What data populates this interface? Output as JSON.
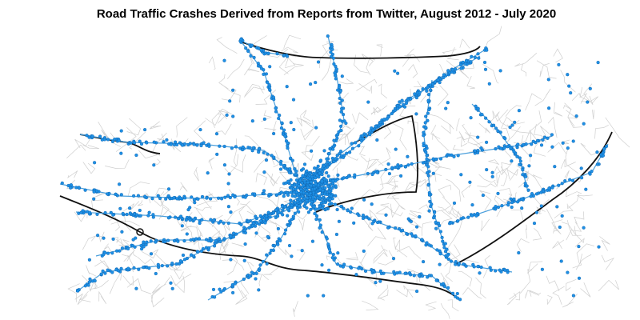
{
  "title": "Road Traffic Crashes Derived from Reports from Twitter, August 2012 - July 2020"
}
